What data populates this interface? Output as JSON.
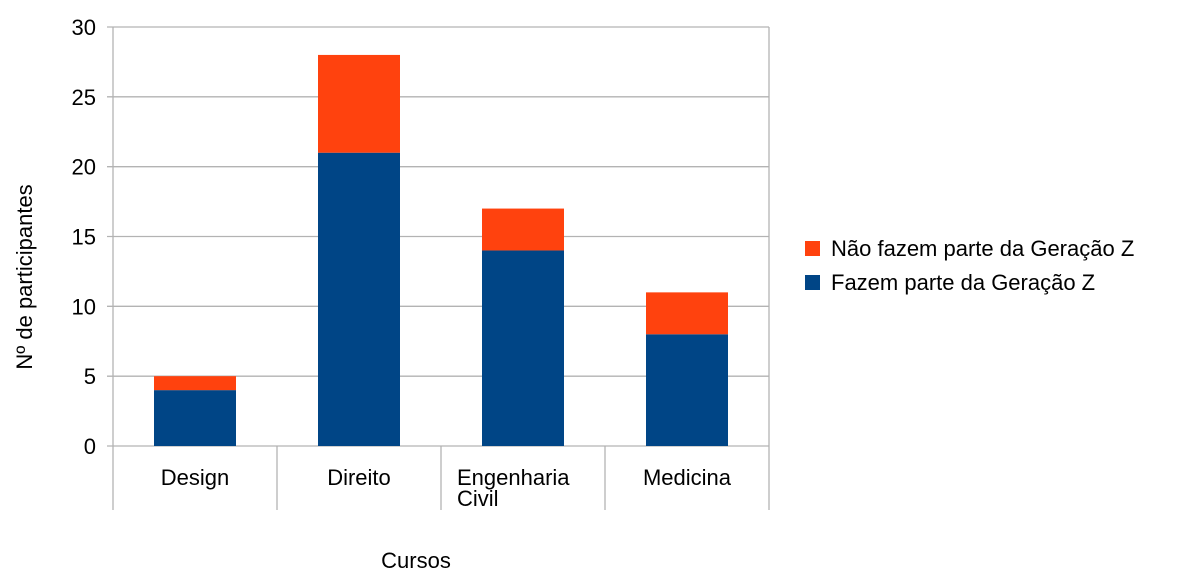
{
  "chart_data": {
    "type": "bar",
    "stacked": true,
    "categories": [
      "Design",
      "Direito",
      "Engenharia Civil",
      "Medicina"
    ],
    "category_lines": [
      [
        "Design"
      ],
      [
        "Direito"
      ],
      [
        "Engenharia",
        "Civil"
      ],
      [
        "Medicina"
      ]
    ],
    "series": [
      {
        "name": "Fazem parte da Geração Z",
        "values": [
          4,
          21,
          14,
          8
        ],
        "color": "#004586"
      },
      {
        "name": "Não fazem parte da Geração Z",
        "values": [
          1,
          7,
          3,
          3
        ],
        "color": "#ff420e"
      }
    ],
    "legend_order": [
      1,
      0
    ],
    "legend_position": "right",
    "xlabel": "Cursos",
    "ylabel": "Nº de participantes",
    "ylim": [
      0,
      30
    ],
    "yticks": [
      0,
      5,
      10,
      15,
      20,
      25,
      30
    ],
    "grid": true,
    "gridline_color": "#b3b3b3"
  }
}
